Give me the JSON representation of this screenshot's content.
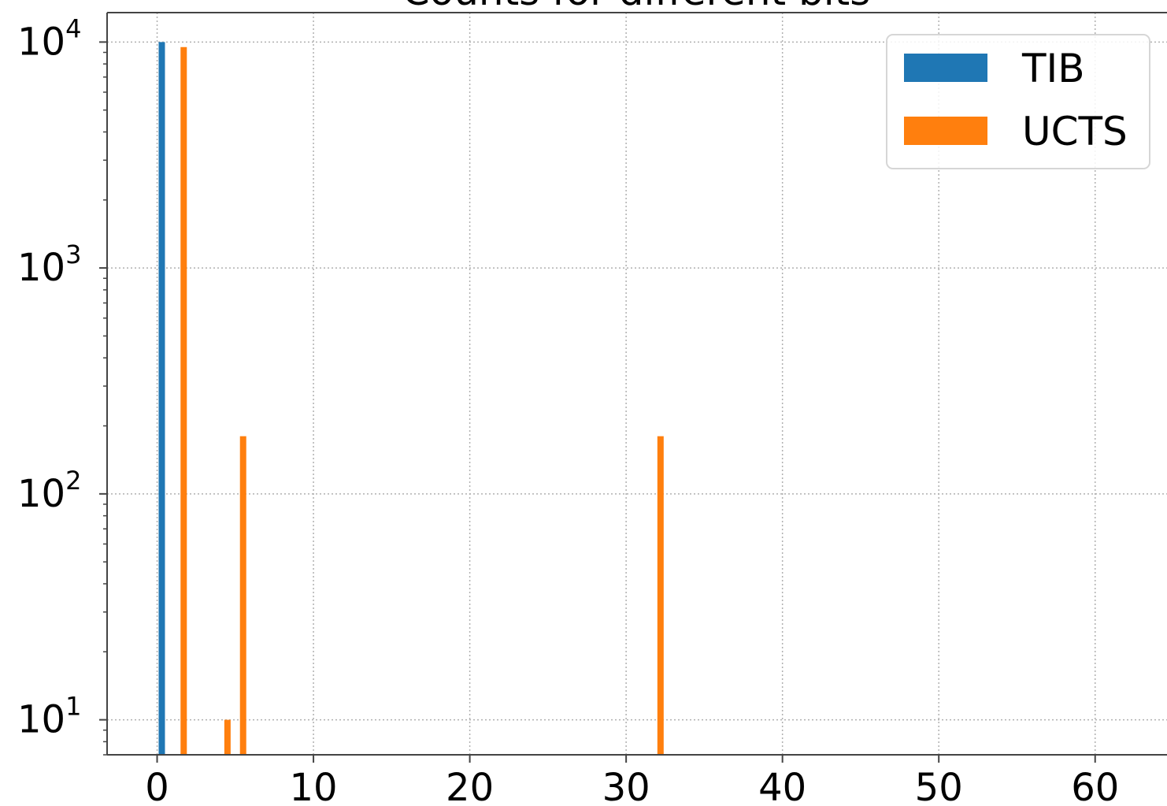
{
  "chart_data": {
    "type": "bar",
    "title": "Counts for different bits",
    "xlabel": "",
    "ylabel": "",
    "yscale": "log",
    "xlim": [
      -3.2,
      65
    ],
    "ylim": [
      7,
      13500
    ],
    "grid": true,
    "legend_placement": "top-right",
    "x_ticks": [
      0,
      10,
      20,
      30,
      40,
      50,
      60
    ],
    "y_ticks": [
      10,
      100,
      1000,
      10000
    ],
    "y_tick_labels": [
      {
        "base": "10",
        "exp": "1"
      },
      {
        "base": "10",
        "exp": "2"
      },
      {
        "base": "10",
        "exp": "3"
      },
      {
        "base": "10",
        "exp": "4"
      }
    ],
    "series": [
      {
        "name": "TIB",
        "color": "#1f77b4",
        "bars": [
          {
            "x": 0.3,
            "value": 10000
          }
        ]
      },
      {
        "name": "UCTS",
        "color": "#ff7f0e",
        "bars": [
          {
            "x": 1.7,
            "value": 9500
          },
          {
            "x": 4.5,
            "value": 10
          },
          {
            "x": 5.5,
            "value": 180
          },
          {
            "x": 32.2,
            "value": 180
          }
        ]
      }
    ]
  }
}
